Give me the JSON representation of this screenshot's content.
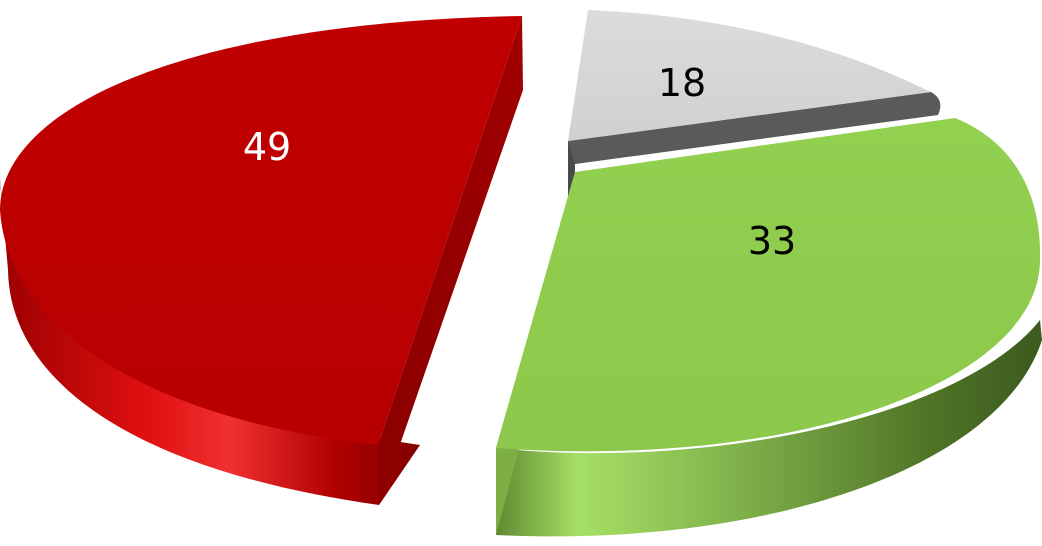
{
  "chart_data": {
    "type": "pie",
    "title": "",
    "categories": [
      "",
      "",
      ""
    ],
    "values": [
      49,
      18,
      33
    ],
    "colors": [
      "#C00000",
      "#D9D9D9",
      "#92D050"
    ],
    "label_colors": [
      "#FFFFFF",
      "#000000",
      "#000000"
    ],
    "data_labels": [
      "49",
      "18",
      "33"
    ],
    "legend": "none",
    "style": "3d-exploded"
  }
}
